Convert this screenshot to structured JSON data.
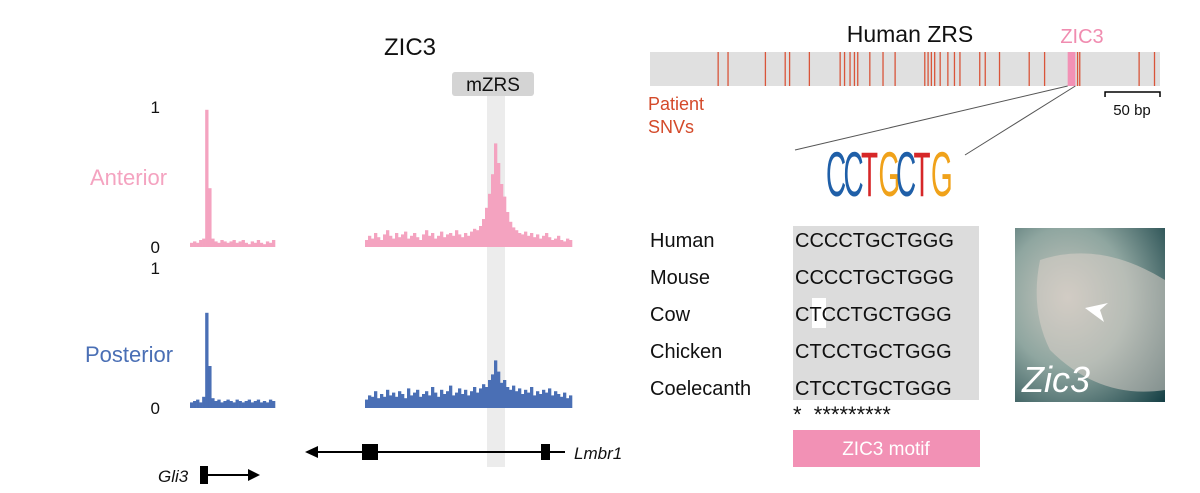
{
  "title": "ZIC3",
  "region_label": "mZRS",
  "tracks": [
    {
      "name": "Anterior",
      "color": "#f4a3c0",
      "ylim": [
        0,
        1
      ],
      "yticks": [
        0,
        1
      ],
      "segments": [
        [
          0.03,
          0.04,
          0.03,
          0.05,
          0.06,
          0.98,
          0.42,
          0.06,
          0.04,
          0.03,
          0.05,
          0.04,
          0.03,
          0.04,
          0.05,
          0.03,
          0.04,
          0.05,
          0.03,
          0.02,
          0.04,
          0.03,
          0.05,
          0.03,
          0.02,
          0.04,
          0.03,
          0.05
        ],
        [
          0.05,
          0.08,
          0.06,
          0.1,
          0.07,
          0.05,
          0.09,
          0.12,
          0.08,
          0.06,
          0.1,
          0.07,
          0.09,
          0.11,
          0.06,
          0.08,
          0.1,
          0.07,
          0.05,
          0.09,
          0.12,
          0.08,
          0.1,
          0.06,
          0.08,
          0.11,
          0.07,
          0.09,
          0.1,
          0.08,
          0.12,
          0.09,
          0.07,
          0.1,
          0.08,
          0.11,
          0.13,
          0.12,
          0.15,
          0.2,
          0.28,
          0.38,
          0.52,
          0.74,
          0.6,
          0.45,
          0.36,
          0.25,
          0.18,
          0.14,
          0.12,
          0.1,
          0.09,
          0.11,
          0.08,
          0.1,
          0.07,
          0.09,
          0.06,
          0.08,
          0.1,
          0.07,
          0.05,
          0.06,
          0.08,
          0.05,
          0.04,
          0.06,
          0.05
        ]
      ]
    },
    {
      "name": "Posterior",
      "color": "#4a6fb5",
      "ylim": [
        0,
        1
      ],
      "yticks": [
        0,
        1
      ],
      "segments": [
        [
          0.04,
          0.05,
          0.06,
          0.04,
          0.08,
          0.68,
          0.3,
          0.07,
          0.05,
          0.06,
          0.04,
          0.05,
          0.06,
          0.05,
          0.04,
          0.06,
          0.05,
          0.04,
          0.05,
          0.06,
          0.04,
          0.05,
          0.06,
          0.04,
          0.05,
          0.04,
          0.06,
          0.05
        ],
        [
          0.06,
          0.09,
          0.08,
          0.12,
          0.07,
          0.1,
          0.08,
          0.13,
          0.09,
          0.11,
          0.08,
          0.12,
          0.1,
          0.07,
          0.14,
          0.09,
          0.11,
          0.13,
          0.08,
          0.1,
          0.12,
          0.09,
          0.15,
          0.11,
          0.08,
          0.13,
          0.1,
          0.12,
          0.16,
          0.09,
          0.11,
          0.14,
          0.1,
          0.13,
          0.09,
          0.12,
          0.15,
          0.11,
          0.14,
          0.17,
          0.15,
          0.2,
          0.24,
          0.34,
          0.26,
          0.18,
          0.2,
          0.15,
          0.13,
          0.16,
          0.12,
          0.14,
          0.1,
          0.13,
          0.11,
          0.15,
          0.09,
          0.12,
          0.1,
          0.13,
          0.11,
          0.14,
          0.09,
          0.12,
          0.1,
          0.08,
          0.11,
          0.07,
          0.09
        ]
      ]
    }
  ],
  "genes": [
    {
      "name": "Gli3"
    },
    {
      "name": "Lmbr1"
    }
  ],
  "zrs": {
    "title": "Human ZRS",
    "length_bp": 464,
    "snv_label": [
      "Patient",
      "SNVs"
    ],
    "snv_positions_bp": [
      62,
      71,
      105,
      123,
      127,
      145,
      173,
      177,
      182,
      186,
      189,
      200,
      212,
      223,
      250,
      253,
      256,
      259,
      264,
      271,
      277,
      282,
      300,
      305,
      318,
      345,
      359,
      389,
      391,
      445,
      459
    ],
    "site_label": "ZIC3",
    "site_bp": [
      380,
      387
    ],
    "scale_bar": {
      "value": 50,
      "label": "50 bp"
    }
  },
  "logo": {
    "letters": [
      "C",
      "C",
      "T",
      "G",
      "C",
      "T",
      "G"
    ]
  },
  "alignment": {
    "rows": [
      {
        "species": "Human",
        "sequence": "CCCCTGCTGGG"
      },
      {
        "species": "Mouse",
        "sequence": "CCCCTGCTGGG"
      },
      {
        "species": "Cow",
        "sequence": "CTCCTGCTGGG"
      },
      {
        "species": "Chicken",
        "sequence": "CTCCTGCTGGG"
      },
      {
        "species": "Coelecanth",
        "sequence": "CTCCTGCTGGG"
      }
    ],
    "conservation": "*  *********",
    "motif_label": "ZIC3 motif"
  },
  "image": {
    "label": "Zic3"
  }
}
